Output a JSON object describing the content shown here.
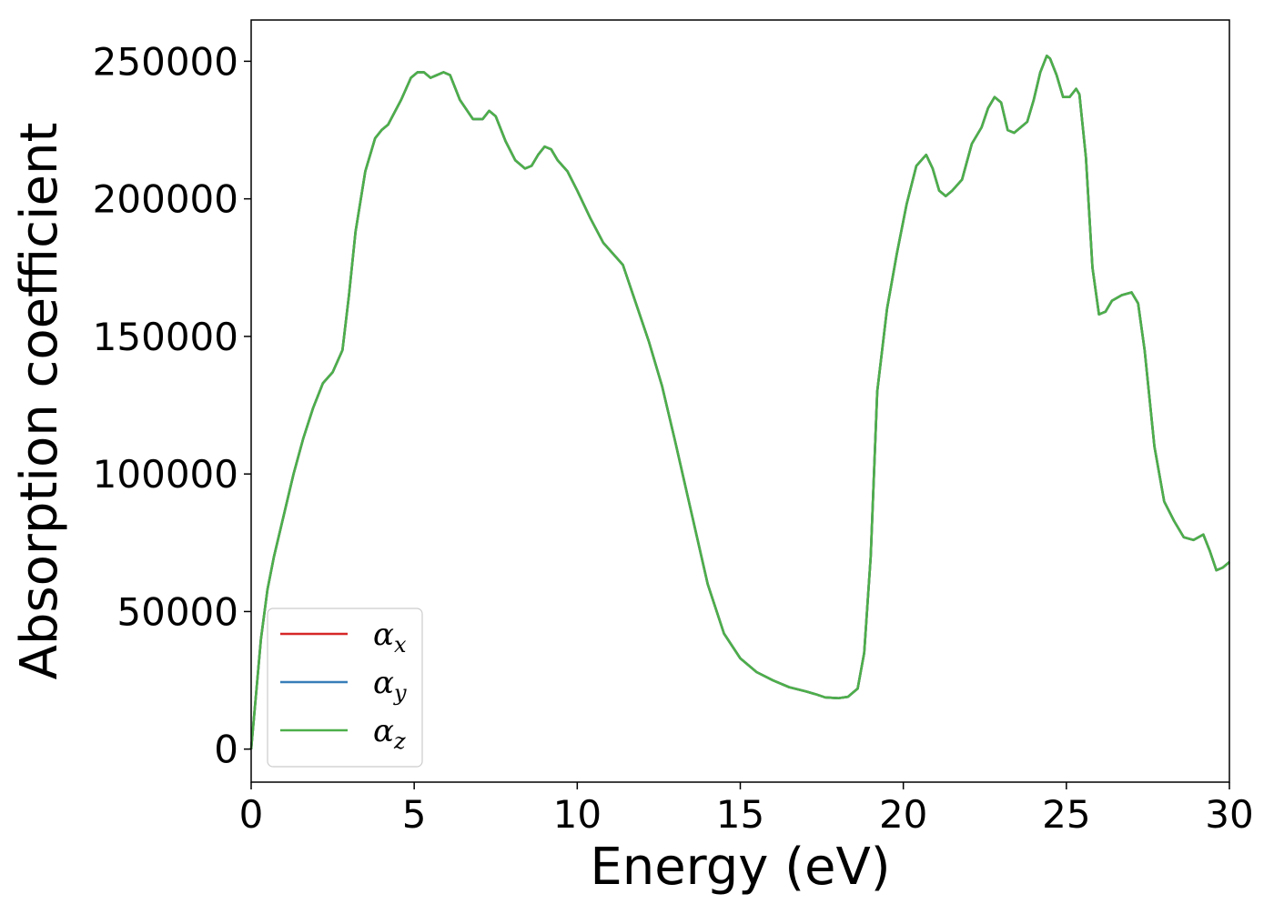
{
  "chart_data": {
    "type": "line",
    "title": "",
    "xlabel": "Energy (eV)",
    "ylabel": "Absorption coefficient",
    "xlim": [
      0,
      30
    ],
    "ylim": [
      -12000,
      265000
    ],
    "xticks": [
      "0",
      "5",
      "10",
      "15",
      "20",
      "25",
      "30"
    ],
    "yticks": [
      "0",
      "50000",
      "100000",
      "150000",
      "200000",
      "250000"
    ],
    "grid": false,
    "legend_position": "lower-left",
    "x": [
      0,
      0.15,
      0.3,
      0.5,
      0.7,
      1.0,
      1.3,
      1.6,
      1.9,
      2.2,
      2.5,
      2.8,
      3.0,
      3.2,
      3.5,
      3.8,
      4.0,
      4.2,
      4.6,
      4.9,
      5.1,
      5.3,
      5.5,
      5.7,
      5.9,
      6.1,
      6.4,
      6.8,
      7.1,
      7.3,
      7.5,
      7.8,
      8.1,
      8.4,
      8.6,
      8.8,
      9.0,
      9.2,
      9.4,
      9.7,
      10.0,
      10.4,
      10.8,
      11.1,
      11.4,
      11.8,
      12.2,
      12.6,
      13.0,
      13.5,
      14.0,
      14.5,
      15.0,
      15.5,
      16.0,
      16.5,
      17.0,
      17.3,
      17.6,
      18.0,
      18.3,
      18.6,
      18.8,
      19.0,
      19.2,
      19.5,
      19.8,
      20.1,
      20.4,
      20.7,
      20.9,
      21.1,
      21.3,
      21.5,
      21.8,
      22.1,
      22.4,
      22.6,
      22.8,
      23.0,
      23.2,
      23.4,
      23.6,
      23.8,
      24.0,
      24.2,
      24.4,
      24.5,
      24.7,
      24.9,
      25.1,
      25.3,
      25.4,
      25.6,
      25.8,
      26.0,
      26.2,
      26.4,
      26.7,
      27.0,
      27.2,
      27.4,
      27.7,
      28.0,
      28.3,
      28.6,
      28.9,
      29.2,
      29.4,
      29.6,
      29.8,
      30.0
    ],
    "series": [
      {
        "name": "α_x",
        "color": "#d62728",
        "values": [
          0,
          20000,
          40000,
          58000,
          70000,
          85000,
          100000,
          113000,
          124000,
          133000,
          137000,
          145000,
          165000,
          188000,
          210000,
          222000,
          225000,
          227000,
          236000,
          244000,
          246000,
          246000,
          244000,
          245000,
          246000,
          245000,
          236000,
          229000,
          229000,
          232000,
          230000,
          221000,
          214000,
          211000,
          212000,
          216000,
          219000,
          218000,
          214000,
          210000,
          203000,
          193000,
          184000,
          180000,
          176000,
          162000,
          148000,
          132000,
          112000,
          86000,
          60000,
          42000,
          33000,
          28000,
          25000,
          22500,
          21000,
          20000,
          18800,
          18500,
          19000,
          22000,
          35000,
          70000,
          130000,
          160000,
          180000,
          198000,
          212000,
          216000,
          211000,
          203000,
          201000,
          203000,
          207000,
          220000,
          226000,
          233000,
          237000,
          235000,
          225000,
          224000,
          226000,
          228000,
          236000,
          246000,
          252000,
          251000,
          245000,
          237000,
          237000,
          240000,
          238000,
          215000,
          175000,
          158000,
          159000,
          163000,
          165000,
          166000,
          162000,
          145000,
          110000,
          90000,
          83000,
          77000,
          76000,
          78000,
          72000,
          65000,
          66000,
          68000
        ]
      },
      {
        "name": "α_y",
        "color": "#377eb8",
        "values": [
          0,
          20000,
          40000,
          58000,
          70000,
          85000,
          100000,
          113000,
          124000,
          133000,
          137000,
          145000,
          165000,
          188000,
          210000,
          222000,
          225000,
          227000,
          236000,
          244000,
          246000,
          246000,
          244000,
          245000,
          246000,
          245000,
          236000,
          229000,
          229000,
          232000,
          230000,
          221000,
          214000,
          211000,
          212000,
          216000,
          219000,
          218000,
          214000,
          210000,
          203000,
          193000,
          184000,
          180000,
          176000,
          162000,
          148000,
          132000,
          112000,
          86000,
          60000,
          42000,
          33000,
          28000,
          25000,
          22500,
          21000,
          20000,
          18800,
          18500,
          19000,
          22000,
          35000,
          70000,
          130000,
          160000,
          180000,
          198000,
          212000,
          216000,
          211000,
          203000,
          201000,
          203000,
          207000,
          220000,
          226000,
          233000,
          237000,
          235000,
          225000,
          224000,
          226000,
          228000,
          236000,
          246000,
          252000,
          251000,
          245000,
          237000,
          237000,
          240000,
          238000,
          215000,
          175000,
          158000,
          159000,
          163000,
          165000,
          166000,
          162000,
          145000,
          110000,
          90000,
          83000,
          77000,
          76000,
          78000,
          72000,
          65000,
          66000,
          68000
        ]
      },
      {
        "name": "α_z",
        "color": "#4daf4a",
        "values": [
          0,
          20000,
          40000,
          58000,
          70000,
          85000,
          100000,
          113000,
          124000,
          133000,
          137000,
          145000,
          165000,
          188000,
          210000,
          222000,
          225000,
          227000,
          236000,
          244000,
          246000,
          246000,
          244000,
          245000,
          246000,
          245000,
          236000,
          229000,
          229000,
          232000,
          230000,
          221000,
          214000,
          211000,
          212000,
          216000,
          219000,
          218000,
          214000,
          210000,
          203000,
          193000,
          184000,
          180000,
          176000,
          162000,
          148000,
          132000,
          112000,
          86000,
          60000,
          42000,
          33000,
          28000,
          25000,
          22500,
          21000,
          20000,
          18800,
          18500,
          19000,
          22000,
          35000,
          70000,
          130000,
          160000,
          180000,
          198000,
          212000,
          216000,
          211000,
          203000,
          201000,
          203000,
          207000,
          220000,
          226000,
          233000,
          237000,
          235000,
          225000,
          224000,
          226000,
          228000,
          236000,
          246000,
          252000,
          251000,
          245000,
          237000,
          237000,
          240000,
          238000,
          215000,
          175000,
          158000,
          159000,
          163000,
          165000,
          166000,
          162000,
          145000,
          110000,
          90000,
          83000,
          77000,
          76000,
          78000,
          72000,
          65000,
          66000,
          68000
        ]
      }
    ]
  },
  "legend": {
    "entries": [
      {
        "symbol": "α",
        "subscript": "x"
      },
      {
        "symbol": "α",
        "subscript": "y"
      },
      {
        "symbol": "α",
        "subscript": "z"
      }
    ]
  }
}
